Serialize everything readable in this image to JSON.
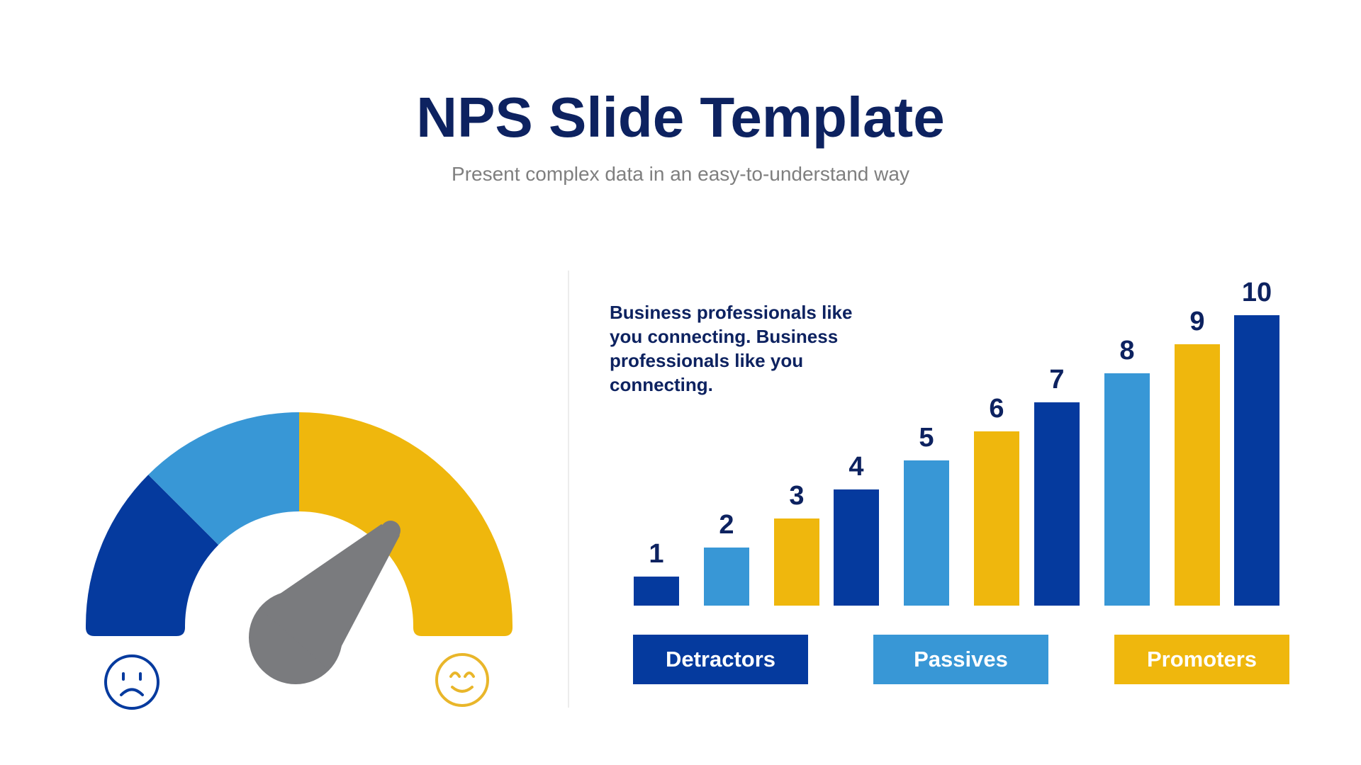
{
  "header": {
    "title": "NPS Slide Template",
    "subtitle": "Present complex data in an easy-to-understand way"
  },
  "description": "Business professionals like you connecting. Business professionals like you connecting.",
  "colors": {
    "dark_blue": "#053A9E",
    "light_blue": "#3897D6",
    "yellow": "#EFB70D",
    "needle_gray": "#7A7B7E",
    "navy_text": "#0D2260"
  },
  "gauge": {
    "segments": [
      {
        "name": "Detractors",
        "color": "#053A9E",
        "start_deg": 180,
        "end_deg": 135
      },
      {
        "name": "Passives",
        "color": "#3897D6",
        "start_deg": 135,
        "end_deg": 90
      },
      {
        "name": "Promoters",
        "color": "#EFB70D",
        "start_deg": 90,
        "end_deg": 0
      }
    ],
    "needle_angle_deg": 48,
    "left_icon": "sad-face-icon",
    "right_icon": "happy-face-icon"
  },
  "legend": [
    {
      "label": "Detractors",
      "color": "#053A9E"
    },
    {
      "label": "Passives",
      "color": "#3897D6"
    },
    {
      "label": "Promoters",
      "color": "#EFB70D"
    }
  ],
  "chart_data": {
    "type": "bar",
    "title": "",
    "xlabel": "",
    "ylabel": "",
    "categories": [
      "1",
      "2",
      "3",
      "4",
      "5",
      "6",
      "7",
      "8",
      "9",
      "10"
    ],
    "values": [
      1,
      2,
      3,
      4,
      5,
      6,
      7,
      8,
      9,
      10
    ],
    "bar_colors": [
      "#053A9E",
      "#3897D6",
      "#EFB70D",
      "#053A9E",
      "#3897D6",
      "#EFB70D",
      "#053A9E",
      "#3897D6",
      "#EFB70D",
      "#053A9E"
    ],
    "data_labels": [
      "1",
      "2",
      "3",
      "4",
      "5",
      "6",
      "7",
      "8",
      "9",
      "10"
    ],
    "ylim": [
      0,
      10
    ],
    "grid": false,
    "legend": [
      "Detractors",
      "Passives",
      "Promoters"
    ],
    "legend_position": "bottom"
  }
}
